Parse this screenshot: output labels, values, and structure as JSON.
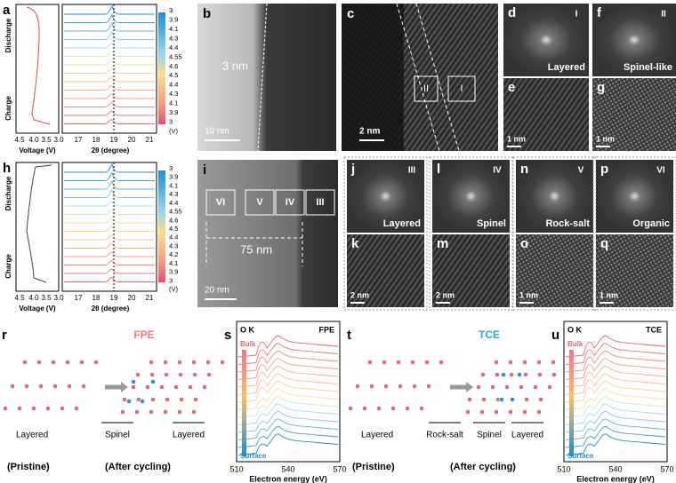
{
  "panel_letters": {
    "a": "a",
    "b": "b",
    "c": "c",
    "d": "d",
    "e": "e",
    "f": "f",
    "g": "g",
    "h": "h",
    "i": "i",
    "j": "j",
    "k": "k",
    "l": "l",
    "m": "m",
    "n": "n",
    "o": "o",
    "p": "p",
    "q": "q",
    "r": "r",
    "s": "s",
    "t": "t",
    "u": "u"
  },
  "panel_a": {
    "discharge": "Discharge",
    "charge": "Charge",
    "voltage_ticks": [
      "4.5",
      "4.0",
      "3.5",
      "3.0"
    ],
    "voltage_label": "Voltage (V)",
    "theta_ticks": [
      "17",
      "18",
      "19",
      "20",
      "21"
    ],
    "theta_label": "2θ (degree)",
    "colorbar_labels": [
      "3",
      "3.9",
      "4.1",
      "4.3",
      "4.4",
      "4.55",
      "4.6",
      "4.5",
      "4.4",
      "4.3",
      "4.1",
      "3.9",
      "3",
      "(V)"
    ]
  },
  "panel_h": {
    "discharge": "Discharge",
    "charge": "Charge",
    "voltage_ticks": [
      "4.5",
      "4.0",
      "3.5",
      "3.0"
    ],
    "voltage_label": "Voltage (V)",
    "theta_ticks": [
      "17",
      "18",
      "19",
      "20",
      "21"
    ],
    "theta_label": "2θ (degree)",
    "colorbar_labels": [
      "3",
      "3.9",
      "4.1",
      "4.3",
      "4.4",
      "4.55",
      "4.6",
      "4.5",
      "4.4",
      "4.3",
      "4.2",
      "4.1",
      "3.9",
      "3",
      "(V)"
    ]
  },
  "panel_b": {
    "thickness": "3 nm",
    "scale": "10 nm"
  },
  "panel_c": {
    "region_2": "II",
    "region_1": "I",
    "scale": "2 nm"
  },
  "panel_d": {
    "region": "I",
    "phase": "Layered"
  },
  "panel_e": {
    "scale": "1 nm"
  },
  "panel_f": {
    "region": "II",
    "phase": "Spinel-like"
  },
  "panel_g": {
    "scale": "1 nm"
  },
  "panel_i": {
    "regions": [
      "VI",
      "V",
      "IV",
      "III"
    ],
    "thickness": "75 nm",
    "scale": "20 nm"
  },
  "panel_j": {
    "region": "III",
    "phase": "Layered"
  },
  "panel_k": {
    "scale": "2 nm"
  },
  "panel_l": {
    "region": "IV",
    "phase": "Spinel"
  },
  "panel_m": {
    "scale": "2 nm"
  },
  "panel_n": {
    "region": "V",
    "phase": "Rock-salt"
  },
  "panel_o": {
    "scale": "1 nm"
  },
  "panel_p": {
    "region": "VI",
    "phase": "Organic"
  },
  "panel_q": {
    "scale": "1 nm"
  },
  "panel_r": {
    "title": "FPE",
    "pristine_phase": "Layered",
    "pristine": "(Pristine)",
    "phases": [
      "Spinel",
      "Layered"
    ],
    "after": "(After cycling)"
  },
  "panel_s": {
    "edge": "O K",
    "electrolyte": "FPE",
    "bulk": "Bulk",
    "surface": "Surface",
    "x_ticks": [
      "510",
      "540",
      "570"
    ],
    "x_label": "Electron energy (eV)"
  },
  "panel_t": {
    "title": "TCE",
    "pristine_phase": "Layered",
    "pristine": "(Pristine)",
    "phases": [
      "Rock-salt",
      "Spinel",
      "Layered"
    ],
    "after": "(After cycling)"
  },
  "panel_u": {
    "edge": "O K",
    "electrolyte": "TCE",
    "bulk": "Bulk",
    "surface": "Surface",
    "x_ticks": [
      "510",
      "540",
      "570"
    ],
    "x_label": "Electron energy (eV)"
  }
}
